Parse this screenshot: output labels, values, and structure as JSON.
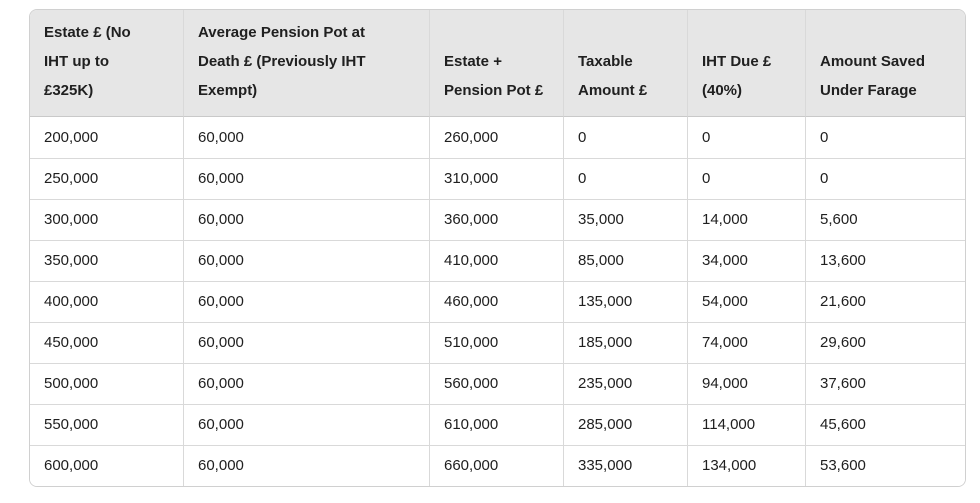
{
  "chart_data": {
    "type": "table",
    "title": "",
    "columns": [
      "Estate £ (No IHT up to £325K)",
      "Average Pension Pot at Death £ (Previously IHT Exempt)",
      "Estate + Pension Pot £",
      "Taxable Amount £",
      "IHT Due £ (40%)",
      "Amount Saved Under Farage"
    ],
    "rows": [
      [
        "200,000",
        "60,000",
        "260,000",
        "0",
        "0",
        "0"
      ],
      [
        "250,000",
        "60,000",
        "310,000",
        "0",
        "0",
        "0"
      ],
      [
        "300,000",
        "60,000",
        "360,000",
        "35,000",
        "14,000",
        "5,600"
      ],
      [
        "350,000",
        "60,000",
        "410,000",
        "85,000",
        "34,000",
        "13,600"
      ],
      [
        "400,000",
        "60,000",
        "460,000",
        "135,000",
        "54,000",
        "21,600"
      ],
      [
        "450,000",
        "60,000",
        "510,000",
        "185,000",
        "74,000",
        "29,600"
      ],
      [
        "500,000",
        "60,000",
        "560,000",
        "235,000",
        "94,000",
        "37,600"
      ],
      [
        "550,000",
        "60,000",
        "610,000",
        "285,000",
        "114,000",
        "45,600"
      ],
      [
        "600,000",
        "60,000",
        "660,000",
        "335,000",
        "134,000",
        "53,600"
      ]
    ]
  },
  "colors": {
    "header_bg": "#e6e6e6",
    "row_bg": "#ffffff",
    "grid": "#d9d9d9",
    "outer_border": "#d0d0d0",
    "text": "#202020"
  }
}
